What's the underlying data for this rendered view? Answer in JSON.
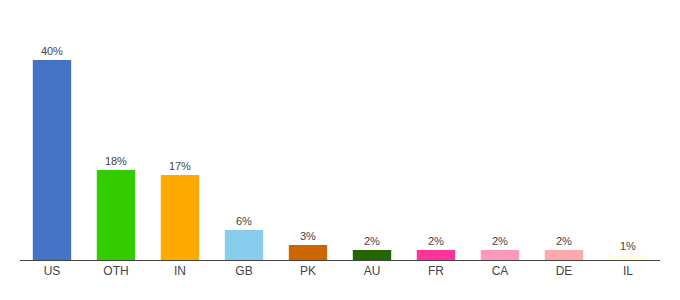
{
  "chart_data": {
    "type": "bar",
    "categories": [
      "US",
      "OTH",
      "IN",
      "GB",
      "PK",
      "AU",
      "FR",
      "CA",
      "DE",
      "IL"
    ],
    "values": [
      40,
      18,
      17,
      6,
      3,
      2,
      2,
      2,
      2,
      1
    ],
    "value_labels": [
      "40%",
      "18%",
      "17%",
      "6%",
      "3%",
      "2%",
      "2%",
      "2%",
      "2%",
      "1%"
    ],
    "colors": [
      "#4472c4",
      "#33cc00",
      "#ffaa00",
      "#88ccee",
      "#cc6600",
      "#226600",
      "#ff3399",
      "#ff99bb",
      "#ffaaaa",
      "#ffffdd"
    ],
    "ylim": [
      0,
      46
    ],
    "data_labels": true,
    "tick_labels": "x",
    "grid": false
  }
}
